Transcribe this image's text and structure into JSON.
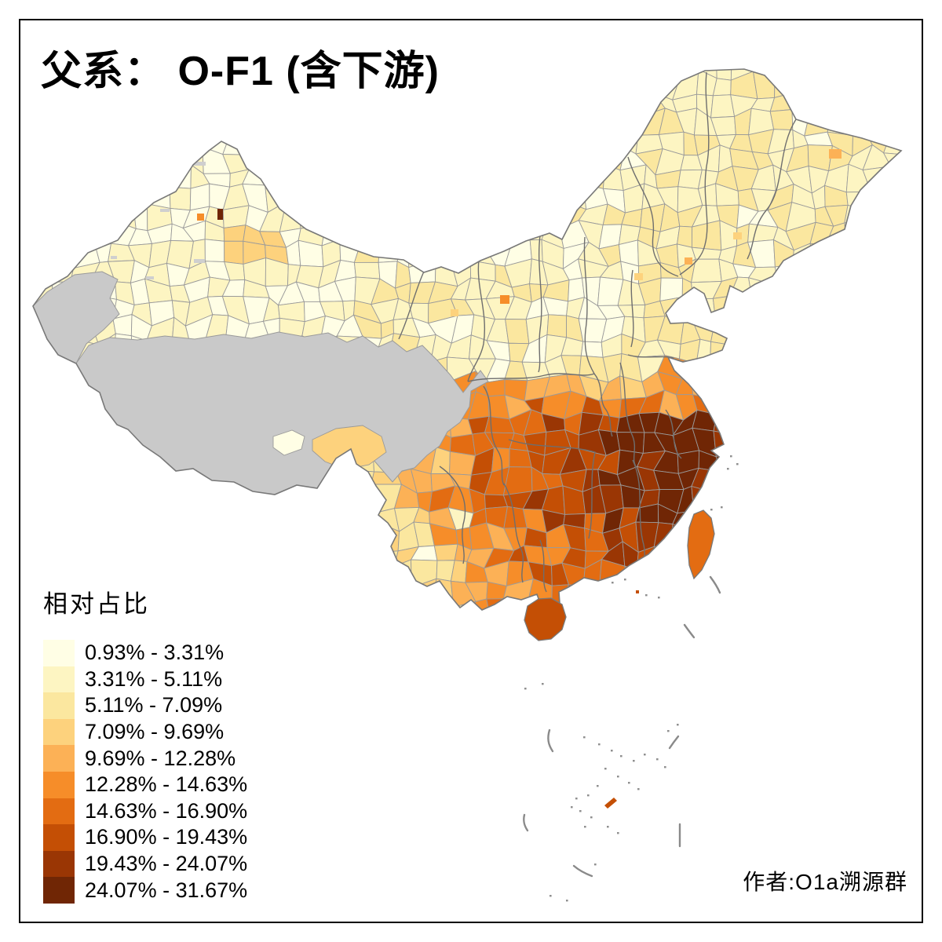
{
  "title": "父系： O-F1 (含下游)",
  "legend": {
    "title": "相对占比",
    "items": [
      {
        "range": "0.93% - 3.31%",
        "color": "#FFFEE5"
      },
      {
        "range": "3.31% - 5.11%",
        "color": "#FDF5C2"
      },
      {
        "range": "5.11% - 7.09%",
        "color": "#FBE79F"
      },
      {
        "range": "7.09% - 9.69%",
        "color": "#FDD27D"
      },
      {
        "range": "9.69% - 12.28%",
        "color": "#FCB156"
      },
      {
        "range": "12.28% - 14.63%",
        "color": "#F68D29"
      },
      {
        "range": "14.63% - 16.90%",
        "color": "#E36C12"
      },
      {
        "range": "16.90% - 19.43%",
        "color": "#C44F05"
      },
      {
        "range": "19.43% - 24.07%",
        "color": "#9A3604"
      },
      {
        "range": "24.07% - 31.67%",
        "color": "#702605"
      }
    ]
  },
  "attribution": "作者:O1a溯源群",
  "map": {
    "type": "choropleth",
    "region": "China, prefecture level",
    "measure": "相对占比 of paternal haplogroup O-F1 (含下游)",
    "no_data_color": "#C9C9C9",
    "cell_border_color": "#9A9A9A",
    "province_border_color": "#6E6E6E",
    "outline_color": "#787878",
    "sea_dash_color": "#8A8A8A",
    "frame_color": "#000000",
    "pattern_summary": [
      {
        "area": "Tibet / Qinghai plateau",
        "value": "no data (gray)"
      },
      {
        "area": "Xinjiang, Inner Mongolia, North China, Northeast",
        "value": "0.93% - 7.09%"
      },
      {
        "area": "Sichuan basin, Yunnan, Guizhou, Guangxi",
        "value": "7.09% - 16.90%"
      },
      {
        "area": "Hunan, Hubei, Jiangxi, Guangdong, Fujian, Taiwan, Hainan",
        "value": "12.28% - 24.07%"
      },
      {
        "area": "South Jiangsu, Shanghai, Zhejiang",
        "value": "24.07% - 31.67%"
      }
    ]
  }
}
